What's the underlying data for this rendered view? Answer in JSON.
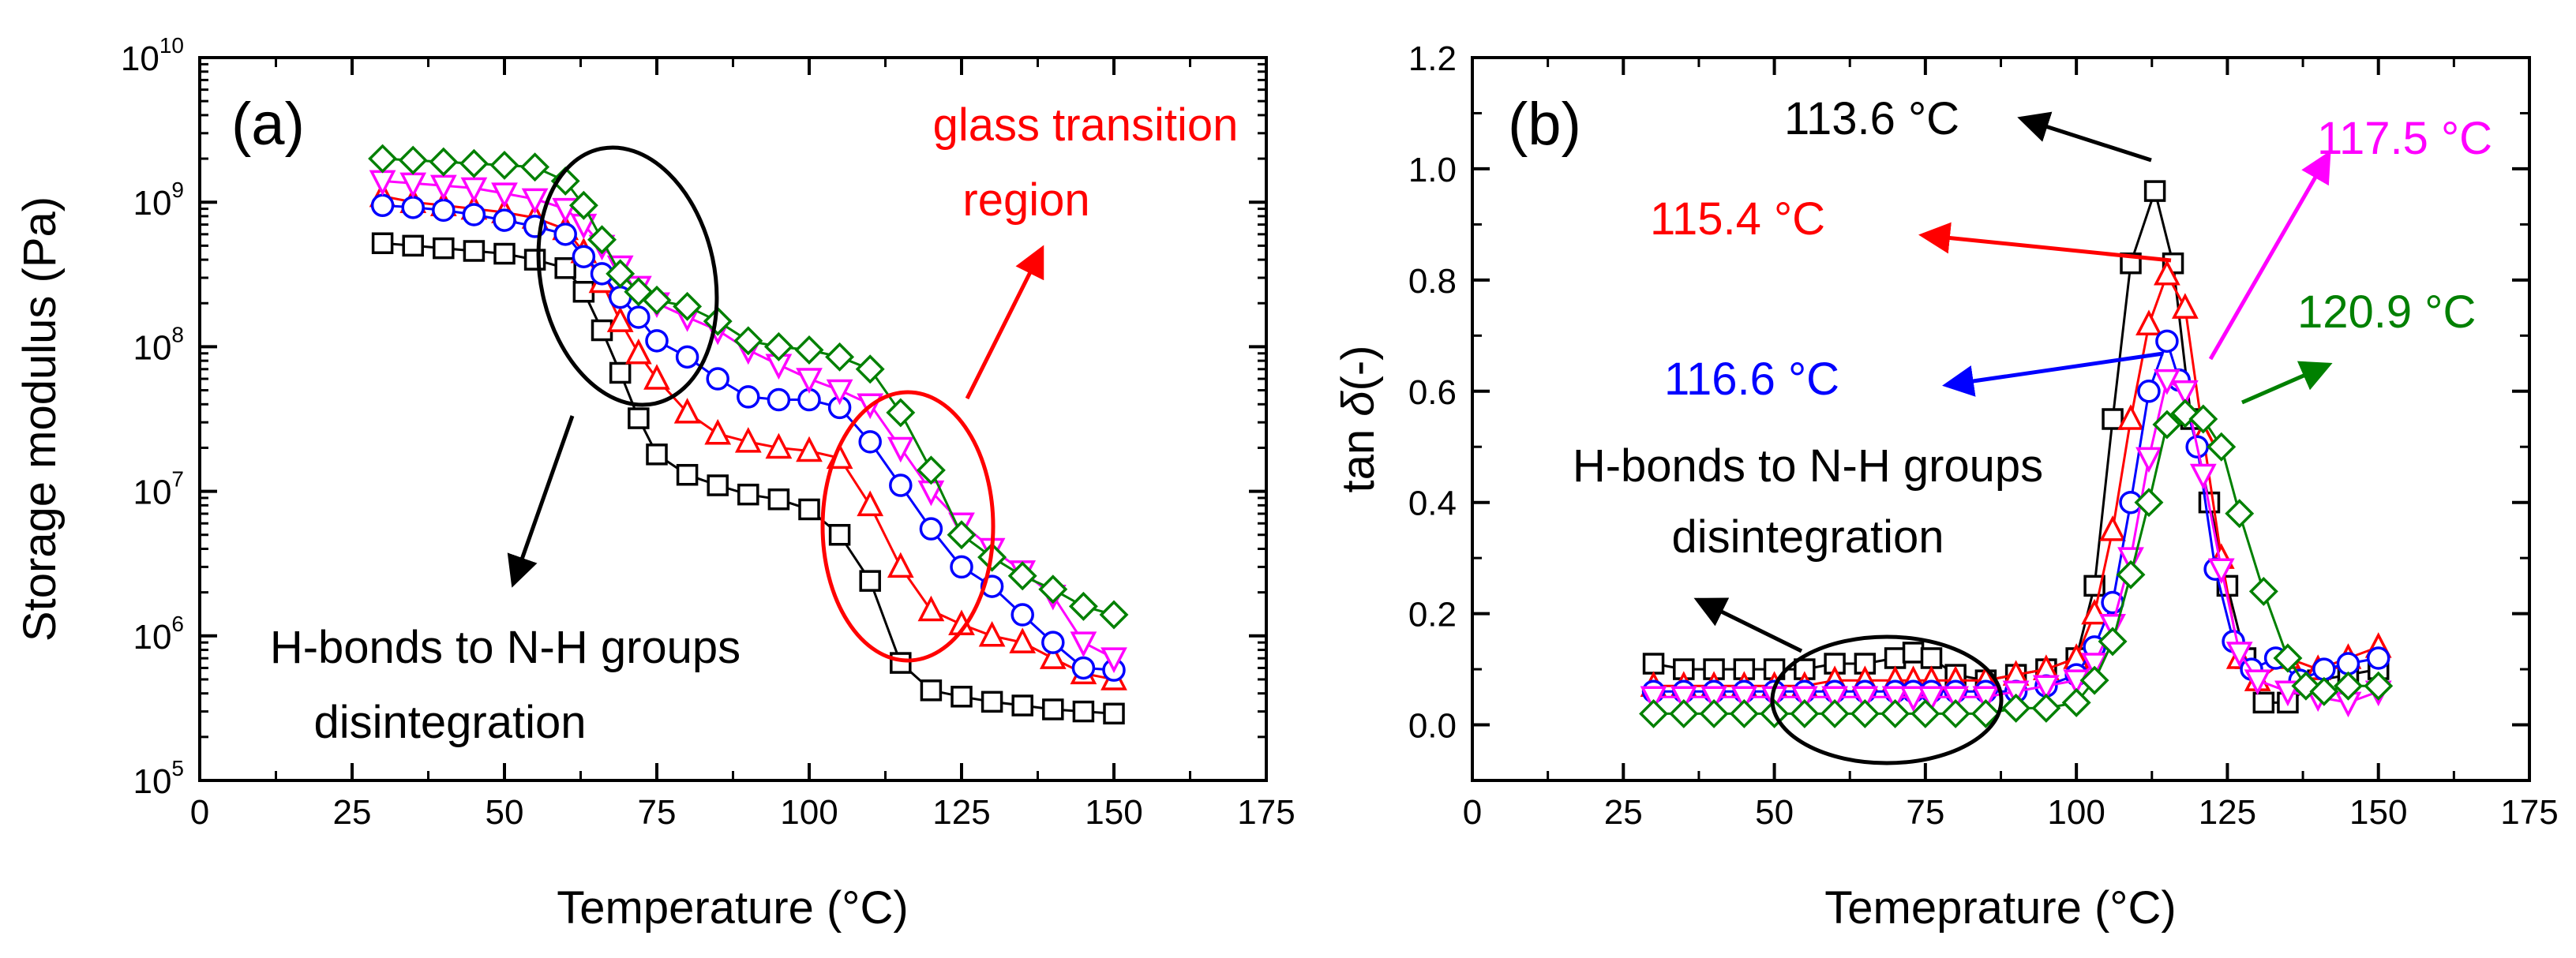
{
  "chart_data": [
    {
      "panel": "a",
      "type": "scatter",
      "panel_label": "(a)",
      "xlabel": "Temperature (°C)",
      "ylabel": "Storage modulus (Pa)",
      "xlim": [
        0,
        175
      ],
      "ylim": [
        100000,
        10000000000
      ],
      "yscale": "log",
      "xticks": [
        0,
        25,
        50,
        75,
        100,
        125,
        150,
        175
      ],
      "xtick_labels": [
        "0",
        "25",
        "50",
        "75",
        "100",
        "125",
        "150",
        "175"
      ],
      "ytick_mantissa": "10",
      "ytick_exponents": [
        "5",
        "6",
        "7",
        "8",
        "9",
        "10"
      ],
      "series": [
        {
          "name": "black squares",
          "marker": "square",
          "color": "#000000",
          "x": [
            30,
            35,
            40,
            45,
            50,
            55,
            60,
            63,
            66,
            69,
            72,
            75,
            80,
            85,
            90,
            95,
            100,
            105,
            110,
            115,
            120,
            125,
            130,
            135,
            140,
            145,
            150
          ],
          "y": [
            520000000.0,
            500000000.0,
            480000000.0,
            460000000.0,
            440000000.0,
            400000000.0,
            350000000.0,
            240000000.0,
            130000000.0,
            66000000.0,
            32000000.0,
            18000000.0,
            13000000.0,
            11000000.0,
            9500000.0,
            8800000.0,
            7500000.0,
            5000000.0,
            2400000.0,
            650000.0,
            420000.0,
            380000.0,
            350000.0,
            330000.0,
            310000.0,
            300000.0,
            290000.0
          ]
        },
        {
          "name": "red triangles",
          "marker": "triangle",
          "color": "#ff0000",
          "x": [
            30,
            35,
            40,
            45,
            50,
            55,
            60,
            63,
            66,
            69,
            72,
            75,
            80,
            85,
            90,
            95,
            100,
            105,
            110,
            115,
            120,
            125,
            130,
            135,
            140,
            145,
            150
          ],
          "y": [
            1100000000.0,
            1000000000.0,
            950000000.0,
            900000000.0,
            850000000.0,
            780000000.0,
            650000000.0,
            450000000.0,
            280000000.0,
            150000000.0,
            90000000.0,
            60000000.0,
            35000000.0,
            25000000.0,
            22000000.0,
            20000000.0,
            19000000.0,
            17000000.0,
            8000000.0,
            3000000.0,
            1500000.0,
            1200000.0,
            1000000.0,
            900000.0,
            700000.0,
            550000.0,
            500000.0
          ]
        },
        {
          "name": "blue circles",
          "marker": "circle",
          "color": "#0000ff",
          "x": [
            30,
            35,
            40,
            45,
            50,
            55,
            60,
            63,
            66,
            69,
            72,
            75,
            80,
            85,
            90,
            95,
            100,
            105,
            110,
            115,
            120,
            125,
            130,
            135,
            140,
            145,
            150
          ],
          "y": [
            950000000.0,
            920000000.0,
            880000000.0,
            820000000.0,
            750000000.0,
            680000000.0,
            600000000.0,
            420000000.0,
            320000000.0,
            220000000.0,
            160000000.0,
            110000000.0,
            85000000.0,
            60000000.0,
            45000000.0,
            43000000.0,
            43000000.0,
            38000000.0,
            22000000.0,
            11000000.0,
            5500000.0,
            3000000.0,
            2200000.0,
            1400000.0,
            900000.0,
            600000.0,
            580000.0
          ]
        },
        {
          "name": "magenta inverted triangles",
          "marker": "triangle-down",
          "color": "#ff00ff",
          "x": [
            30,
            35,
            40,
            45,
            50,
            55,
            60,
            63,
            66,
            69,
            72,
            75,
            80,
            85,
            90,
            95,
            100,
            105,
            110,
            115,
            120,
            125,
            130,
            135,
            140,
            145,
            150
          ],
          "y": [
            1400000000.0,
            1350000000.0,
            1300000000.0,
            1250000000.0,
            1150000000.0,
            1050000000.0,
            900000000.0,
            700000000.0,
            500000000.0,
            360000000.0,
            260000000.0,
            200000000.0,
            160000000.0,
            130000000.0,
            95000000.0,
            75000000.0,
            60000000.0,
            50000000.0,
            40000000.0,
            20000000.0,
            10000000.0,
            6000000.0,
            4000000.0,
            2800000.0,
            1900000.0,
            900000.0,
            700000.0
          ]
        },
        {
          "name": "green diamonds",
          "marker": "diamond",
          "color": "#008000",
          "x": [
            30,
            35,
            40,
            45,
            50,
            55,
            60,
            63,
            66,
            69,
            72,
            75,
            80,
            85,
            90,
            95,
            100,
            105,
            110,
            115,
            120,
            125,
            130,
            135,
            140,
            145,
            150
          ],
          "y": [
            2000000000.0,
            1950000000.0,
            1900000000.0,
            1850000000.0,
            1800000000.0,
            1750000000.0,
            1400000000.0,
            950000000.0,
            550000000.0,
            320000000.0,
            240000000.0,
            210000000.0,
            190000000.0,
            150000000.0,
            110000000.0,
            100000000.0,
            95000000.0,
            85000000.0,
            70000000.0,
            35000000.0,
            14000000.0,
            5000000.0,
            3500000.0,
            2600000.0,
            2100000.0,
            1600000.0,
            1400000.0
          ]
        }
      ],
      "annotations": [
        {
          "text": "glass transition",
          "color": "#ff0000"
        },
        {
          "text": "region",
          "color": "#ff0000"
        },
        {
          "text": "H-bonds to N-H groups",
          "color": "#000000"
        },
        {
          "text": "disintegration",
          "color": "#000000"
        }
      ]
    },
    {
      "panel": "b",
      "type": "scatter",
      "panel_label": "(b)",
      "xlabel": "Temeprature (°C)",
      "ylabel": "tan δ(-)",
      "ylabel_prefix": "tan ",
      "ylabel_symbol": "δ",
      "ylabel_suffix": "(-)",
      "xlim": [
        0,
        175
      ],
      "ylim": [
        -0.1,
        1.2
      ],
      "xticks": [
        0,
        25,
        50,
        75,
        100,
        125,
        150,
        175
      ],
      "xtick_labels": [
        "0",
        "25",
        "50",
        "75",
        "100",
        "125",
        "150",
        "175"
      ],
      "yticks": [
        0.0,
        0.2,
        0.4,
        0.6,
        0.8,
        1.0,
        1.2
      ],
      "ytick_labels": [
        "0.0",
        "0.2",
        "0.4",
        "0.6",
        "0.8",
        "1.0",
        "1.2"
      ],
      "series": [
        {
          "name": "black squares",
          "marker": "square",
          "color": "#000000",
          "x": [
            30,
            35,
            40,
            45,
            50,
            55,
            60,
            65,
            70,
            73,
            76,
            80,
            85,
            90,
            95,
            100,
            103,
            106,
            109,
            113,
            116,
            119,
            122,
            125,
            128,
            131,
            135,
            140,
            145,
            150
          ],
          "y": [
            0.11,
            0.1,
            0.1,
            0.1,
            0.1,
            0.1,
            0.11,
            0.11,
            0.12,
            0.13,
            0.12,
            0.09,
            0.08,
            0.09,
            0.1,
            0.12,
            0.25,
            0.55,
            0.83,
            0.96,
            0.83,
            0.55,
            0.4,
            0.25,
            0.12,
            0.04,
            0.04,
            0.08,
            0.09,
            0.1
          ]
        },
        {
          "name": "red triangles",
          "marker": "triangle",
          "color": "#ff0000",
          "x": [
            30,
            35,
            40,
            45,
            50,
            55,
            60,
            65,
            70,
            73,
            76,
            80,
            85,
            90,
            95,
            100,
            103,
            106,
            109,
            112,
            115,
            118,
            121,
            124,
            127,
            130,
            135,
            140,
            145,
            150
          ],
          "y": [
            0.07,
            0.07,
            0.07,
            0.07,
            0.07,
            0.07,
            0.08,
            0.08,
            0.08,
            0.08,
            0.08,
            0.08,
            0.08,
            0.09,
            0.1,
            0.12,
            0.2,
            0.35,
            0.55,
            0.72,
            0.81,
            0.75,
            0.52,
            0.3,
            0.12,
            0.08,
            0.12,
            0.1,
            0.12,
            0.14
          ]
        },
        {
          "name": "blue circles",
          "marker": "circle",
          "color": "#0000ff",
          "x": [
            30,
            35,
            40,
            45,
            50,
            55,
            60,
            65,
            70,
            73,
            76,
            80,
            85,
            90,
            95,
            100,
            103,
            106,
            109,
            112,
            115,
            117,
            120,
            123,
            126,
            129,
            133,
            137,
            141,
            145,
            150
          ],
          "y": [
            0.06,
            0.06,
            0.06,
            0.06,
            0.06,
            0.06,
            0.06,
            0.06,
            0.06,
            0.06,
            0.06,
            0.06,
            0.06,
            0.06,
            0.07,
            0.09,
            0.14,
            0.22,
            0.4,
            0.6,
            0.69,
            0.62,
            0.5,
            0.28,
            0.15,
            0.1,
            0.12,
            0.08,
            0.1,
            0.11,
            0.12
          ]
        },
        {
          "name": "magenta inverted triangles",
          "marker": "triangle-down",
          "color": "#ff00ff",
          "x": [
            30,
            35,
            40,
            45,
            50,
            55,
            60,
            65,
            70,
            73,
            76,
            80,
            85,
            90,
            95,
            100,
            103,
            106,
            109,
            112,
            115,
            118,
            121,
            124,
            127,
            130,
            135,
            140,
            145,
            150
          ],
          "y": [
            0.05,
            0.05,
            0.05,
            0.05,
            0.05,
            0.05,
            0.05,
            0.05,
            0.05,
            0.05,
            0.05,
            0.05,
            0.05,
            0.06,
            0.07,
            0.08,
            0.11,
            0.18,
            0.3,
            0.48,
            0.62,
            0.6,
            0.45,
            0.28,
            0.13,
            0.08,
            0.06,
            0.05,
            0.04,
            0.06
          ]
        },
        {
          "name": "green diamonds",
          "marker": "diamond",
          "color": "#008000",
          "x": [
            30,
            35,
            40,
            45,
            50,
            55,
            60,
            65,
            70,
            75,
            80,
            85,
            90,
            95,
            100,
            103,
            106,
            109,
            112,
            115,
            118,
            121,
            124,
            127,
            131,
            135,
            138,
            141,
            145,
            150
          ],
          "y": [
            0.02,
            0.02,
            0.02,
            0.02,
            0.02,
            0.02,
            0.02,
            0.02,
            0.02,
            0.02,
            0.02,
            0.02,
            0.03,
            0.03,
            0.04,
            0.08,
            0.15,
            0.27,
            0.4,
            0.54,
            0.56,
            0.55,
            0.5,
            0.38,
            0.24,
            0.12,
            0.07,
            0.06,
            0.07,
            0.07
          ]
        }
      ],
      "annotations": [
        {
          "text": "113.6 °C",
          "color": "#000000"
        },
        {
          "text": "115.4 °C",
          "color": "#ff0000"
        },
        {
          "text": "117.5 °C",
          "color": "#ff00ff"
        },
        {
          "text": "120.9 °C",
          "color": "#008000"
        },
        {
          "text": "116.6 °C",
          "color": "#0000ff"
        },
        {
          "text": "H-bonds to N-H groups",
          "color": "#000000"
        },
        {
          "text": "disintegration",
          "color": "#000000"
        }
      ]
    }
  ]
}
